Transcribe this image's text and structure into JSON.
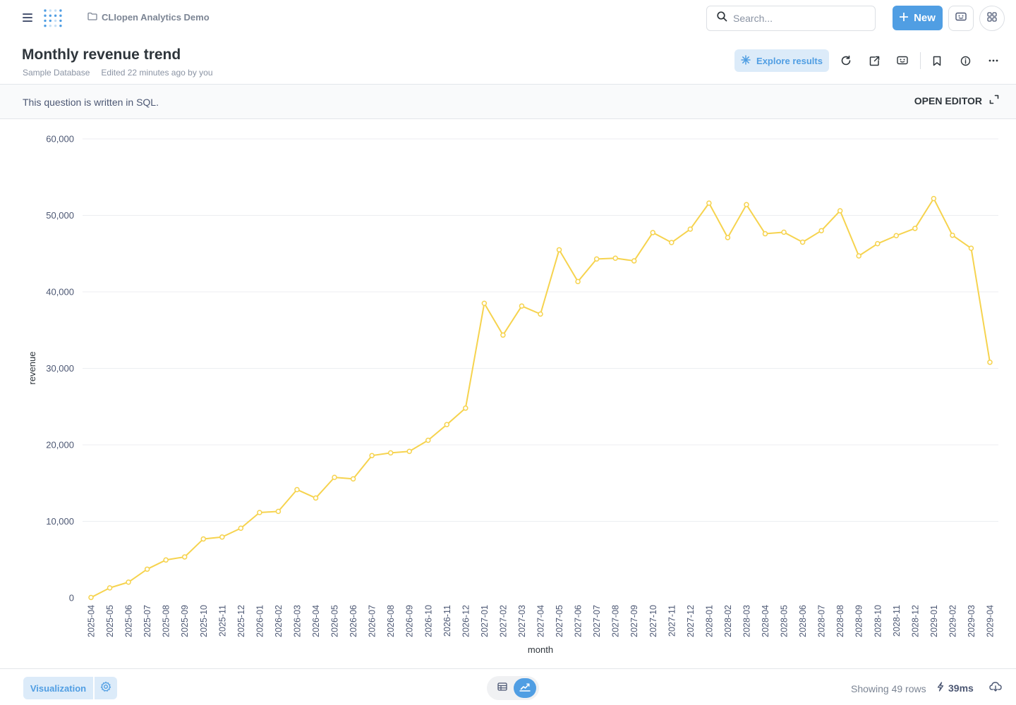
{
  "navbar": {
    "collection_name": "CLIopen Analytics Demo",
    "search_placeholder": "Search...",
    "new_label": "New",
    "icons": [
      "menu-icon",
      "metabase-logo",
      "folder-icon",
      "search-icon",
      "plus-icon",
      "share-screen-icon",
      "apps-grid-icon"
    ]
  },
  "header": {
    "title": "Monthly revenue trend",
    "database": "Sample Database",
    "edited": "Edited 22 minutes ago by you",
    "explore_label": "Explore results",
    "icons": [
      "sparkle-icon",
      "refresh-icon",
      "external-link-icon",
      "embed-icon",
      "bookmark-icon",
      "info-icon",
      "more-icon"
    ]
  },
  "sql_bar": {
    "text": "This question is written in SQL.",
    "open_editor_label": "OPEN EDITOR"
  },
  "colors": {
    "series": "#f6d34e",
    "accent": "#509ee3",
    "accent_light": "#dcebf9"
  },
  "chart_data": {
    "type": "line",
    "title": "",
    "xlabel": "month",
    "ylabel": "revenue",
    "ylim": [
      0,
      60000
    ],
    "yticks": [
      "0",
      "10,000",
      "20,000",
      "30,000",
      "40,000",
      "50,000",
      "60,000"
    ],
    "grid": true,
    "categories": [
      "2025-04",
      "2025-05",
      "2025-06",
      "2025-07",
      "2025-08",
      "2025-09",
      "2025-10",
      "2025-11",
      "2025-12",
      "2026-01",
      "2026-02",
      "2026-03",
      "2026-04",
      "2026-05",
      "2026-06",
      "2026-07",
      "2026-08",
      "2026-09",
      "2026-10",
      "2026-11",
      "2026-12",
      "2027-01",
      "2027-02",
      "2027-03",
      "2027-04",
      "2027-05",
      "2027-06",
      "2027-07",
      "2027-08",
      "2027-09",
      "2027-10",
      "2027-11",
      "2027-12",
      "2028-01",
      "2028-02",
      "2028-03",
      "2028-04",
      "2028-05",
      "2028-06",
      "2028-07",
      "2028-08",
      "2028-09",
      "2028-10",
      "2028-11",
      "2028-12",
      "2029-01",
      "2029-02",
      "2029-03",
      "2029-04"
    ],
    "series": [
      {
        "values": [
          50,
          1300,
          2050,
          3750,
          4950,
          5350,
          7700,
          7950,
          9100,
          11150,
          11300,
          14150,
          13050,
          15750,
          15550,
          18600,
          18950,
          19150,
          20600,
          22650,
          24800,
          38500,
          34350,
          38150,
          37100,
          45500,
          41350,
          44300,
          44400,
          44050,
          47750,
          46450,
          48200,
          51600,
          47100,
          51400,
          47600,
          47800,
          46500,
          48000,
          50600,
          44700,
          46300,
          47350,
          48300,
          52200,
          47400,
          45700,
          30800
        ]
      }
    ]
  },
  "footer": {
    "visualization_label": "Visualization",
    "row_count": "Showing 49 rows",
    "timing": "39ms",
    "icons": [
      "gear-icon",
      "table-icon",
      "line-chart-icon",
      "bolt-icon",
      "download-icon"
    ]
  }
}
